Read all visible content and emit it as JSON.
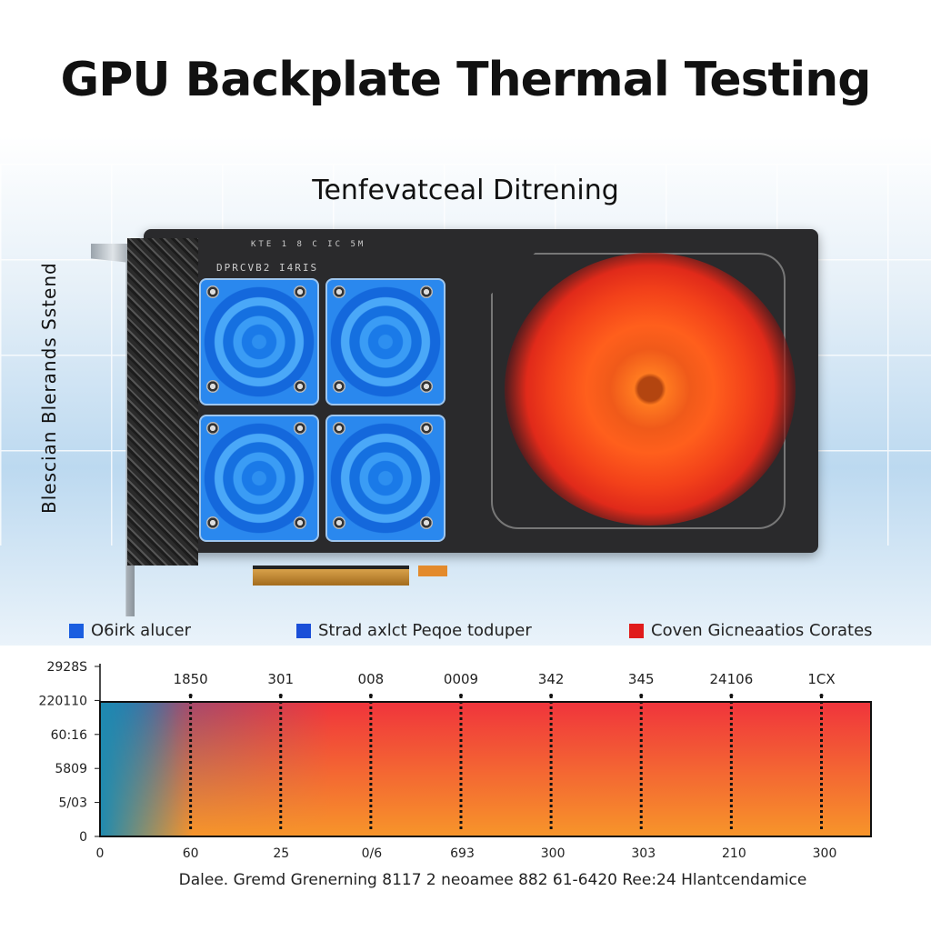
{
  "title": "GPU Backplate Thermal Testing",
  "subtitle": "Tenfevatceal Ditrening",
  "side_label": "Blescian Blerands Sstend",
  "card": {
    "label_top": "KTE 1 8 C IC 5M",
    "label_model": "DPRCVB2 I4RIS"
  },
  "legend": [
    {
      "label": "O6irk alucer",
      "color": "#1a5ee0"
    },
    {
      "label": "Strad axlct Peqoe toduper",
      "color": "#1a4fd8"
    },
    {
      "label": "Coven Gicneaatios Corates",
      "color": "#e01b1b"
    }
  ],
  "chart_data": {
    "type": "heatmap",
    "title": "",
    "xlabel": "Dalee. Gremd Grenerning 8117 2 neoamee 882 61-6420 Ree:24 Hlantcendamice",
    "y_tick_labels": [
      "2928S",
      "220110",
      "60:16",
      "5809",
      "5/03",
      "0"
    ],
    "x_tick_labels": [
      "0",
      "60",
      "25",
      "0/6",
      "693",
      "300",
      "303",
      "210",
      "300"
    ],
    "marker_labels": [
      "1850",
      "301",
      "008",
      "0009",
      "342",
      "345",
      "24106",
      "1CX"
    ],
    "gradient": {
      "cold": "#1e6fc0",
      "mid": "#f2323a",
      "hot": "#f7952a"
    },
    "grid": false,
    "legend": "top"
  }
}
